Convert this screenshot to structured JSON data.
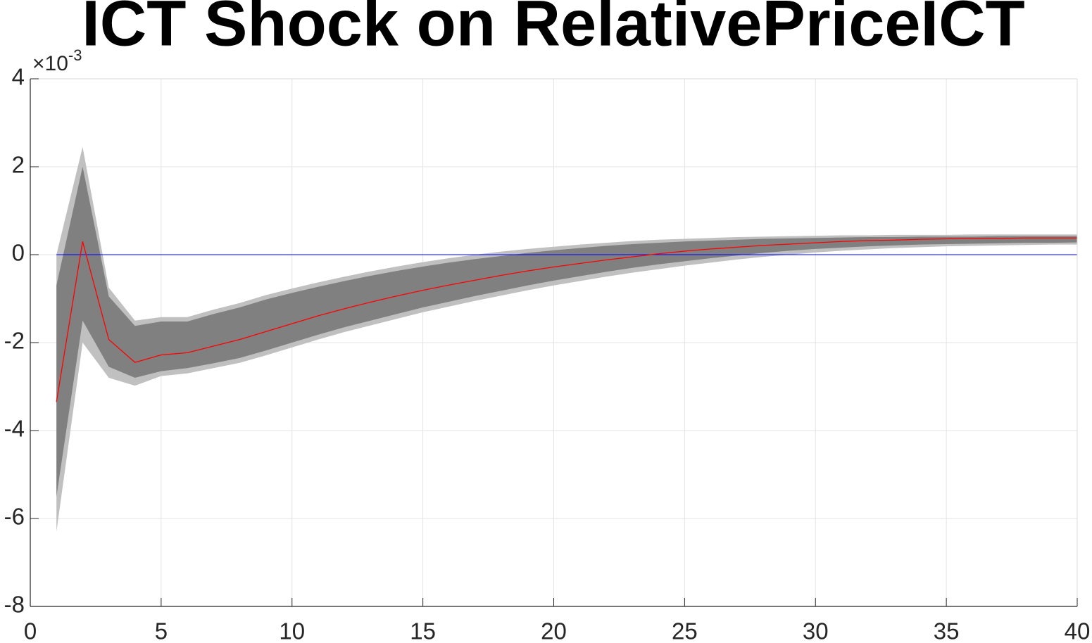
{
  "chart_data": {
    "type": "band_line",
    "title": "ICT Shock on RelativePriceICT",
    "y_multiplier": {
      "base": "×10",
      "exponent": "-3"
    },
    "x": [
      1,
      2,
      3,
      4,
      5,
      6,
      7,
      8,
      9,
      10,
      11,
      12,
      13,
      14,
      15,
      16,
      17,
      18,
      19,
      20,
      21,
      22,
      23,
      24,
      25,
      26,
      27,
      28,
      29,
      30,
      31,
      32,
      33,
      34,
      35,
      36,
      37,
      38,
      39,
      40
    ],
    "bands": [
      {
        "color": "#c0c0c0",
        "upper": [
          0.0,
          2.45,
          -0.75,
          -1.5,
          -1.42,
          -1.42,
          -1.25,
          -1.1,
          -0.92,
          -0.77,
          -0.63,
          -0.5,
          -0.38,
          -0.27,
          -0.17,
          -0.08,
          0.0,
          0.07,
          0.13,
          0.18,
          0.23,
          0.27,
          0.31,
          0.34,
          0.36,
          0.38,
          0.4,
          0.41,
          0.42,
          0.43,
          0.44,
          0.44,
          0.45,
          0.45,
          0.45,
          0.46,
          0.46,
          0.46,
          0.46,
          0.46
        ],
        "lower": [
          -6.3,
          -2.0,
          -2.8,
          -2.98,
          -2.76,
          -2.7,
          -2.58,
          -2.46,
          -2.29,
          -2.11,
          -1.93,
          -1.76,
          -1.61,
          -1.46,
          -1.31,
          -1.18,
          -1.05,
          -0.93,
          -0.81,
          -0.7,
          -0.6,
          -0.5,
          -0.41,
          -0.33,
          -0.25,
          -0.18,
          -0.11,
          -0.05,
          0.0,
          0.05,
          0.09,
          0.12,
          0.15,
          0.17,
          0.19,
          0.2,
          0.21,
          0.22,
          0.23,
          0.23
        ]
      },
      {
        "color": "#808080",
        "upper": [
          -0.7,
          2.0,
          -0.95,
          -1.62,
          -1.52,
          -1.52,
          -1.35,
          -1.2,
          -1.02,
          -0.87,
          -0.73,
          -0.6,
          -0.48,
          -0.37,
          -0.27,
          -0.18,
          -0.1,
          -0.03,
          0.04,
          0.1,
          0.15,
          0.2,
          0.24,
          0.27,
          0.3,
          0.32,
          0.34,
          0.36,
          0.37,
          0.38,
          0.39,
          0.4,
          0.4,
          0.41,
          0.41,
          0.41,
          0.42,
          0.42,
          0.42,
          0.42
        ],
        "lower": [
          -5.5,
          -1.5,
          -2.55,
          -2.8,
          -2.65,
          -2.58,
          -2.47,
          -2.35,
          -2.18,
          -2.0,
          -1.82,
          -1.65,
          -1.5,
          -1.35,
          -1.2,
          -1.07,
          -0.94,
          -0.82,
          -0.7,
          -0.59,
          -0.49,
          -0.39,
          -0.3,
          -0.22,
          -0.15,
          -0.08,
          -0.02,
          0.04,
          0.09,
          0.13,
          0.16,
          0.19,
          0.21,
          0.23,
          0.24,
          0.25,
          0.26,
          0.27,
          0.27,
          0.28
        ]
      }
    ],
    "line": {
      "color": "#ff0000",
      "values": [
        -3.35,
        0.3,
        -1.93,
        -2.45,
        -2.28,
        -2.23,
        -2.08,
        -1.93,
        -1.75,
        -1.57,
        -1.39,
        -1.23,
        -1.08,
        -0.94,
        -0.81,
        -0.69,
        -0.58,
        -0.47,
        -0.37,
        -0.28,
        -0.2,
        -0.12,
        -0.05,
        0.02,
        0.08,
        0.13,
        0.17,
        0.21,
        0.24,
        0.27,
        0.3,
        0.32,
        0.33,
        0.35,
        0.36,
        0.37,
        0.37,
        0.38,
        0.38,
        0.38
      ]
    },
    "hline": {
      "value": 0,
      "color": "#0000ff"
    },
    "xlim": [
      0,
      40
    ],
    "xticks": [
      0,
      5,
      10,
      15,
      20,
      25,
      30,
      35,
      40
    ],
    "ylim": [
      -8,
      4
    ],
    "yticks": [
      -8,
      -6,
      -4,
      -2,
      0,
      2,
      4
    ],
    "grid": true
  }
}
